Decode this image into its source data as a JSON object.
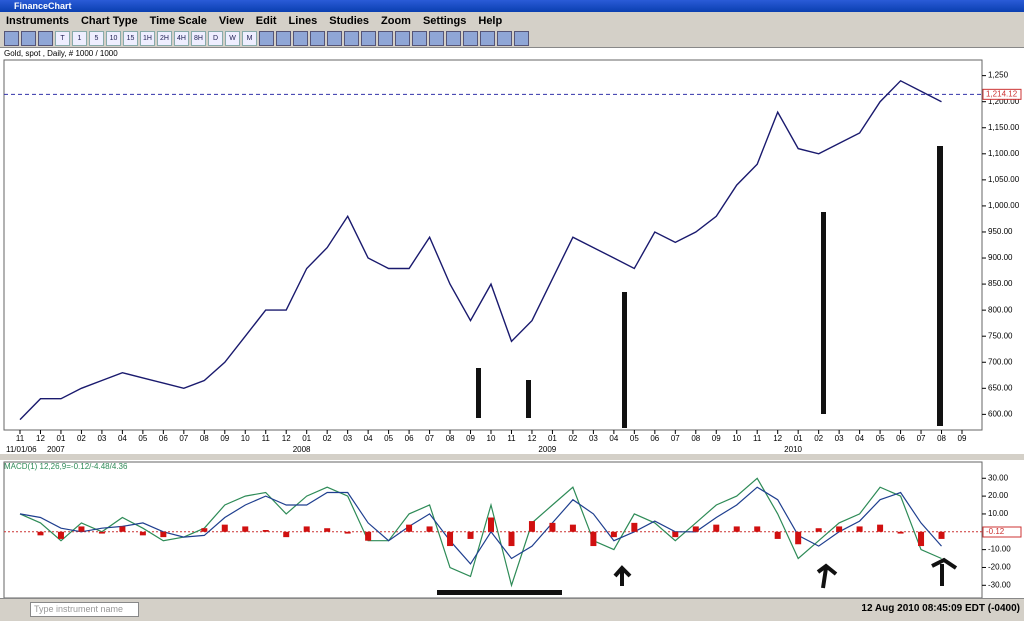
{
  "window": {
    "title": "FinanceChart"
  },
  "menu": [
    "Instruments",
    "Chart Type",
    "Time Scale",
    "View",
    "Edit",
    "Lines",
    "Studies",
    "Zoom",
    "Settings",
    "Help"
  ],
  "toolbar": [
    "T",
    "1",
    "5",
    "10",
    "15",
    "1H",
    "2H",
    "4H",
    "8H",
    "D",
    "W",
    "M"
  ],
  "chart_data": [
    {
      "type": "line",
      "title": "Gold, spot , Daily, # 1000 / 1000",
      "categories": [
        "11",
        "12",
        "01",
        "02",
        "03",
        "04",
        "05",
        "06",
        "07",
        "08",
        "09",
        "10",
        "11",
        "12",
        "01",
        "02",
        "03",
        "04",
        "05",
        "06",
        "07",
        "08",
        "09",
        "10",
        "11",
        "12",
        "01",
        "02",
        "03",
        "04",
        "05",
        "06",
        "07",
        "08",
        "09",
        "10",
        "11",
        "12",
        "01",
        "02",
        "03",
        "04",
        "05",
        "06",
        "07",
        "08",
        "09"
      ],
      "year_labels": [
        "11/01/06",
        "2007",
        "2008",
        "2009",
        "2010"
      ],
      "series": [
        {
          "name": "Gold, spot",
          "color": "#1a1a6e",
          "values": [
            590,
            630,
            630,
            650,
            665,
            680,
            670,
            660,
            650,
            665,
            700,
            750,
            800,
            800,
            880,
            920,
            980,
            900,
            880,
            880,
            940,
            850,
            780,
            850,
            740,
            780,
            860,
            940,
            920,
            900,
            880,
            950,
            930,
            950,
            980,
            1040,
            1080,
            1180,
            1110,
            1100,
            1120,
            1140,
            1200,
            1240,
            1220,
            1200,
            null
          ]
        }
      ],
      "last_value": {
        "value": 1214.12,
        "label": "1,214.12"
      },
      "ylim": [
        570,
        1280
      ],
      "yticks": [
        {
          "value": 600,
          "label": "600.00"
        },
        {
          "value": 650,
          "label": "650.00"
        },
        {
          "value": 700,
          "label": "700.00"
        },
        {
          "value": 750,
          "label": "750.00"
        },
        {
          "value": 800,
          "label": "800.00"
        },
        {
          "value": 850,
          "label": "850.00"
        },
        {
          "value": 900,
          "label": "900.00"
        },
        {
          "value": 950,
          "label": "950.00"
        },
        {
          "value": 1000,
          "label": "1,000.00"
        },
        {
          "value": 1050,
          "label": "1,050.00"
        },
        {
          "value": 1100,
          "label": "1,100.00"
        },
        {
          "value": 1150,
          "label": "1,150.00"
        },
        {
          "value": 1200,
          "label": "1,200.00"
        },
        {
          "value": 1250,
          "label": "1,250"
        }
      ]
    },
    {
      "type": "macd",
      "title": "MACD(1) 12,26,9=-0.12/-4.48/4.36",
      "series": [
        {
          "name": "MACD",
          "color": "#2e8b57",
          "values": [
            10,
            5,
            -5,
            5,
            0,
            8,
            2,
            -5,
            -3,
            2,
            15,
            20,
            22,
            10,
            20,
            25,
            20,
            -5,
            -5,
            10,
            15,
            -20,
            -25,
            15,
            -30,
            5,
            15,
            25,
            -5,
            -10,
            10,
            5,
            -5,
            5,
            15,
            20,
            30,
            10,
            -15,
            -5,
            5,
            10,
            25,
            20,
            -10,
            -15,
            null
          ]
        },
        {
          "name": "Signal",
          "color": "#1f3f8f",
          "values": [
            10,
            8,
            2,
            0,
            2,
            3,
            5,
            0,
            -3,
            -2,
            8,
            15,
            20,
            15,
            15,
            22,
            22,
            5,
            -5,
            3,
            10,
            -5,
            -18,
            0,
            -15,
            -8,
            5,
            18,
            10,
            -5,
            0,
            6,
            0,
            0,
            8,
            15,
            25,
            18,
            -2,
            -8,
            0,
            6,
            18,
            22,
            5,
            -8,
            null
          ]
        },
        {
          "name": "Histogram",
          "color": "#d01010",
          "values": [
            0,
            -2,
            -4,
            3,
            -1,
            3,
            -2,
            -3,
            0,
            2,
            4,
            3,
            1,
            -3,
            3,
            2,
            -1,
            -5,
            0,
            4,
            3,
            -8,
            -4,
            8,
            -8,
            6,
            5,
            4,
            -8,
            -3,
            5,
            0,
            -3,
            3,
            4,
            3,
            3,
            -4,
            -7,
            2,
            3,
            3,
            4,
            -1,
            -8,
            -4,
            null
          ]
        }
      ],
      "last_value": -0.12,
      "ylim": [
        -36,
        38
      ],
      "yticks": [
        {
          "value": 30,
          "label": "30.00"
        },
        {
          "value": 20,
          "label": "20.00"
        },
        {
          "value": 10,
          "label": "10.00"
        },
        {
          "value": -10,
          "label": "-10.00"
        },
        {
          "value": -20,
          "label": "-20.00"
        },
        {
          "value": -30,
          "label": "-30.00"
        }
      ]
    }
  ],
  "status": {
    "placeholder": "Type instrument name",
    "datetime": "12 Aug 2010 08:45:09  EDT (-0400)"
  }
}
